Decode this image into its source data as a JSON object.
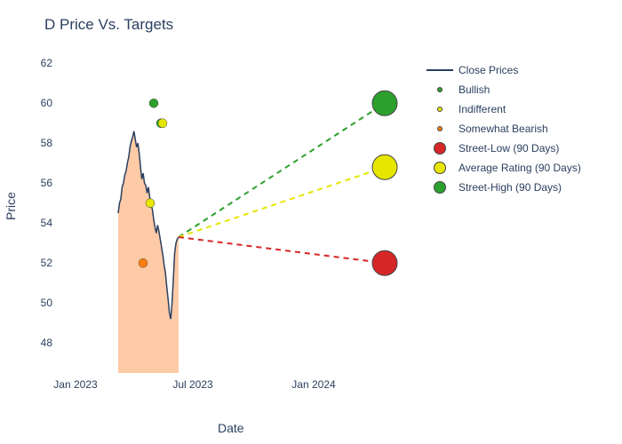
{
  "title": "D Price Vs. Targets",
  "x_axis": {
    "label": "Date",
    "ticks": [
      "Jan 2023",
      "Jul 2023",
      "Jan 2024"
    ],
    "tick_positions": [
      0.05,
      0.38,
      0.72
    ],
    "range_start": "2022-12",
    "range_end": "2024-07"
  },
  "y_axis": {
    "label": "Price",
    "ticks": [
      48,
      50,
      52,
      54,
      56,
      58,
      60,
      62
    ],
    "ylim": [
      46.5,
      62.5
    ]
  },
  "legend": {
    "items": [
      {
        "label": "Close Prices",
        "type": "line",
        "color": "#2a3f5f"
      },
      {
        "label": "Bullish",
        "type": "dot",
        "color": "#2ca02c",
        "size": 6
      },
      {
        "label": "Indifferent",
        "type": "dot",
        "color": "#e6e600",
        "size": 6
      },
      {
        "label": "Somewhat Bearish",
        "type": "dot",
        "color": "#ff7f0e",
        "size": 6
      },
      {
        "label": "Street-Low (90 Days)",
        "type": "bigdot",
        "color": "#d62728",
        "size": 14
      },
      {
        "label": "Average Rating (90 Days)",
        "type": "bigdot",
        "color": "#e6e600",
        "size": 14
      },
      {
        "label": "Street-High (90 Days)",
        "type": "bigdot",
        "color": "#2ca02c",
        "size": 14
      }
    ]
  },
  "price_series": {
    "x_start": 0.17,
    "x_end": 0.34,
    "values": [
      54.5,
      55.0,
      55.2,
      55.8,
      56.0,
      56.4,
      56.6,
      57.0,
      57.3,
      57.8,
      58.1,
      58.3,
      58.6,
      58.2,
      57.8,
      58.0,
      57.5,
      56.8,
      56.2,
      56.5,
      56.0,
      55.9,
      55.5,
      55.8,
      55.3,
      54.9,
      54.7,
      54.2,
      53.8,
      53.5,
      53.9,
      53.6,
      53.2,
      52.8,
      52.4,
      51.9,
      51.5,
      50.8,
      50.2,
      49.5,
      49.2,
      50.0,
      51.2,
      52.5,
      53.0,
      53.2,
      53.3
    ],
    "line_color": "#2a3f5f",
    "line_width": 1.5,
    "fill_color": "#ffb380",
    "fill_opacity": 0.7
  },
  "scatter_points": [
    {
      "x": 0.26,
      "y": 55.0,
      "color": "#e6e600",
      "size": 5
    },
    {
      "x": 0.27,
      "y": 60.0,
      "color": "#2ca02c",
      "size": 5
    },
    {
      "x": 0.29,
      "y": 59.0,
      "color": "#2ca02c",
      "size": 5
    },
    {
      "x": 0.295,
      "y": 59.0,
      "color": "#e6e600",
      "size": 5
    },
    {
      "x": 0.24,
      "y": 52.0,
      "color": "#ff7f0e",
      "size": 5
    }
  ],
  "projection_lines": {
    "start_x": 0.34,
    "start_y": 53.3,
    "end_x": 0.92,
    "dash": "6,5",
    "width": 2,
    "lines": [
      {
        "end_y": 60.0,
        "color": "#2ca02c"
      },
      {
        "end_y": 56.8,
        "color": "#e6e600"
      },
      {
        "end_y": 52.0,
        "color": "#d62728"
      }
    ]
  },
  "target_points": [
    {
      "x": 0.92,
      "y": 60.0,
      "color": "#2ca02c",
      "size": 14
    },
    {
      "x": 0.92,
      "y": 56.8,
      "color": "#e6e600",
      "size": 14
    },
    {
      "x": 0.92,
      "y": 52.0,
      "color": "#d62728",
      "size": 14
    }
  ],
  "colors": {
    "background": "#ffffff",
    "text": "#2a3f5f",
    "title": "#2a3f5f"
  }
}
